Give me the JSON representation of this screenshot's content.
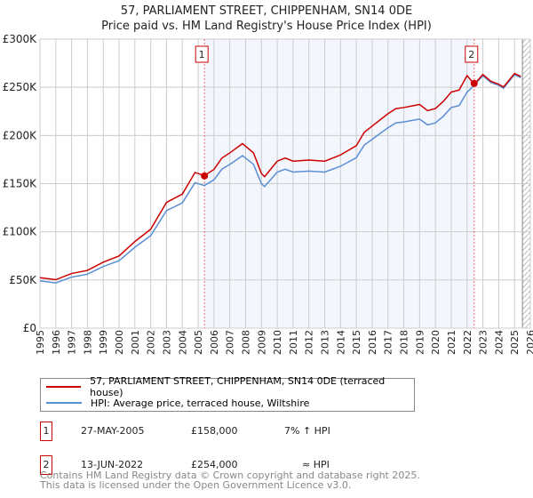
{
  "chart_data": {
    "type": "line",
    "title": "57, PARLIAMENT STREET, CHIPPENHAM, SN14 0DE",
    "subtitle": "Price paid vs. HM Land Registry's House Price Index (HPI)",
    "xlim": [
      1995,
      2026
    ],
    "ylim": [
      0,
      300000
    ],
    "y_ticks": [
      {
        "v": 0,
        "label": "£0"
      },
      {
        "v": 50000,
        "label": "£50K"
      },
      {
        "v": 100000,
        "label": "£100K"
      },
      {
        "v": 150000,
        "label": "£150K"
      },
      {
        "v": 200000,
        "label": "£200K"
      },
      {
        "v": 250000,
        "label": "£250K"
      },
      {
        "v": 300000,
        "label": "£300K"
      }
    ],
    "x_ticks": [
      "1995",
      "1996",
      "1997",
      "1998",
      "1999",
      "2000",
      "2001",
      "2002",
      "2003",
      "2004",
      "2005",
      "2006",
      "2007",
      "2008",
      "2009",
      "2010",
      "2011",
      "2012",
      "2013",
      "2014",
      "2015",
      "2016",
      "2017",
      "2018",
      "2019",
      "2020",
      "2021",
      "2022",
      "2023",
      "2024",
      "2025",
      "2026"
    ],
    "hpi_x": [
      1995,
      1996,
      1997,
      1998,
      1999,
      2000,
      2001,
      2002,
      2003,
      2004,
      2004.8,
      2005.4,
      2006,
      2006.5,
      2007,
      2007.8,
      2008.5,
      2009,
      2009.2,
      2010,
      2010.5,
      2011,
      2012,
      2013,
      2014,
      2015,
      2015.5,
      2016,
      2017,
      2017.5,
      2018,
      2019,
      2019.5,
      2020,
      2020.5,
      2021,
      2021.5,
      2022,
      2022.45,
      2023,
      2023.5,
      2024,
      2024.3,
      2025,
      2025.4
    ],
    "hpi_y": [
      49000,
      47000,
      53000,
      56000,
      64000,
      70000,
      84000,
      96000,
      122000,
      130000,
      151000,
      148000,
      154000,
      165000,
      170000,
      179000,
      170000,
      150000,
      147000,
      162000,
      165000,
      162000,
      163000,
      162000,
      168000,
      177000,
      190000,
      196000,
      208000,
      213000,
      214000,
      217000,
      211000,
      213000,
      220000,
      229000,
      231000,
      245000,
      252000,
      262000,
      255000,
      252000,
      249000,
      263000,
      260000
    ],
    "series": [
      {
        "name": "57, PARLIAMENT STREET, CHIPPENHAM, SN14 0DE (terraced house)",
        "color": "#cc0000"
      },
      {
        "name": "HPI: Average price, terraced house, Wiltshire",
        "color": "#5b8fd4"
      }
    ],
    "sales": [
      {
        "id": "1",
        "year": 2005.4,
        "price": 158000,
        "date": "27-MAY-2005",
        "price_label": "£158,000",
        "hpi": "7% ↑ HPI"
      },
      {
        "id": "2",
        "year": 2022.45,
        "price": 254000,
        "date": "13-JUN-2022",
        "price_label": "£254,000",
        "hpi": "≈ HPI"
      }
    ]
  },
  "footer": {
    "line1": "Contains HM Land Registry data © Crown copyright and database right 2025.",
    "line2": "This data is licensed under the Open Government Licence v3.0."
  }
}
